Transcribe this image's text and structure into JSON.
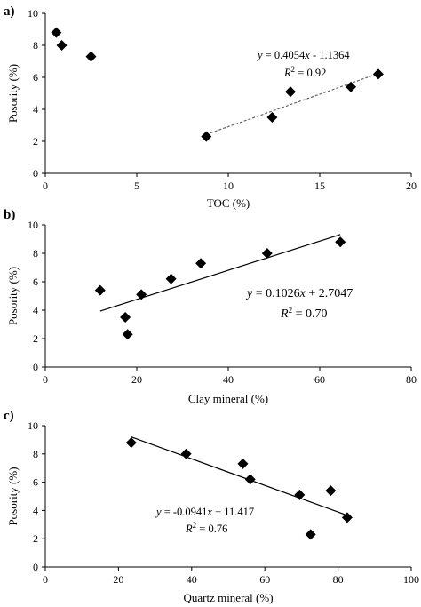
{
  "chart_data": [
    {
      "type": "scatter",
      "panel_label": "a)",
      "xlabel": "TOC (%)",
      "ylabel": "Posority (%)",
      "xlim": [
        0,
        20
      ],
      "ylim": [
        0,
        10
      ],
      "xticks": [
        "0",
        "5",
        "10",
        "15",
        "20"
      ],
      "yticks": [
        "0",
        "2",
        "4",
        "6",
        "8",
        "10"
      ],
      "grid": false,
      "points": [
        {
          "x": 0.6,
          "y": 8.8
        },
        {
          "x": 0.9,
          "y": 8.0
        },
        {
          "x": 2.5,
          "y": 7.3
        },
        {
          "x": 8.8,
          "y": 2.3
        },
        {
          "x": 12.4,
          "y": 3.5
        },
        {
          "x": 13.4,
          "y": 5.1
        },
        {
          "x": 16.7,
          "y": 5.4
        },
        {
          "x": 18.2,
          "y": 6.2
        }
      ],
      "trendline": {
        "x_start": 8.8,
        "x_end": 18.2,
        "slope": 0.4054,
        "intercept": -1.1364,
        "style": "dashed"
      },
      "equation_text": "y = 0.4054x - 1.1364",
      "r2_text": "R2 = 0.92"
    },
    {
      "type": "scatter",
      "panel_label": "b)",
      "xlabel": "Clay mineral (%)",
      "ylabel": "Posority (%)",
      "xlim": [
        0,
        80
      ],
      "ylim": [
        0,
        10
      ],
      "xticks": [
        "0",
        "20",
        "40",
        "60",
        "80"
      ],
      "yticks": [
        "0",
        "2",
        "4",
        "6",
        "8",
        "10"
      ],
      "grid": false,
      "points": [
        {
          "x": 12.0,
          "y": 5.4
        },
        {
          "x": 17.5,
          "y": 3.5
        },
        {
          "x": 18.0,
          "y": 2.3
        },
        {
          "x": 21.0,
          "y": 5.1
        },
        {
          "x": 27.5,
          "y": 6.2
        },
        {
          "x": 34.0,
          "y": 7.3
        },
        {
          "x": 48.5,
          "y": 8.0
        },
        {
          "x": 64.5,
          "y": 8.8
        }
      ],
      "trendline": {
        "x_start": 12.0,
        "x_end": 64.5,
        "slope": 0.1026,
        "intercept": 2.7047,
        "style": "solid"
      },
      "equation_text": "y = 0.1026x + 2.7047",
      "r2_text": "R2 = 0.70"
    },
    {
      "type": "scatter",
      "panel_label": "c)",
      "xlabel": "Quartz mineral (%)",
      "ylabel": "Posority (%)",
      "xlim": [
        0,
        100
      ],
      "ylim": [
        0,
        10
      ],
      "xticks": [
        "0",
        "20",
        "40",
        "60",
        "80",
        "100"
      ],
      "yticks": [
        "0",
        "2",
        "4",
        "6",
        "8",
        "10"
      ],
      "grid": false,
      "points": [
        {
          "x": 23.5,
          "y": 8.8
        },
        {
          "x": 38.5,
          "y": 8.0
        },
        {
          "x": 54.0,
          "y": 7.3
        },
        {
          "x": 56.0,
          "y": 6.2
        },
        {
          "x": 69.5,
          "y": 5.1
        },
        {
          "x": 72.5,
          "y": 2.3
        },
        {
          "x": 78.0,
          "y": 5.4
        },
        {
          "x": 82.5,
          "y": 3.5
        }
      ],
      "trendline": {
        "x_start": 23.5,
        "x_end": 82.5,
        "slope": -0.0941,
        "intercept": 11.417,
        "style": "solid"
      },
      "equation_text": "y = -0.0941x + 11.417",
      "r2_text": "R2 = 0.76"
    }
  ]
}
